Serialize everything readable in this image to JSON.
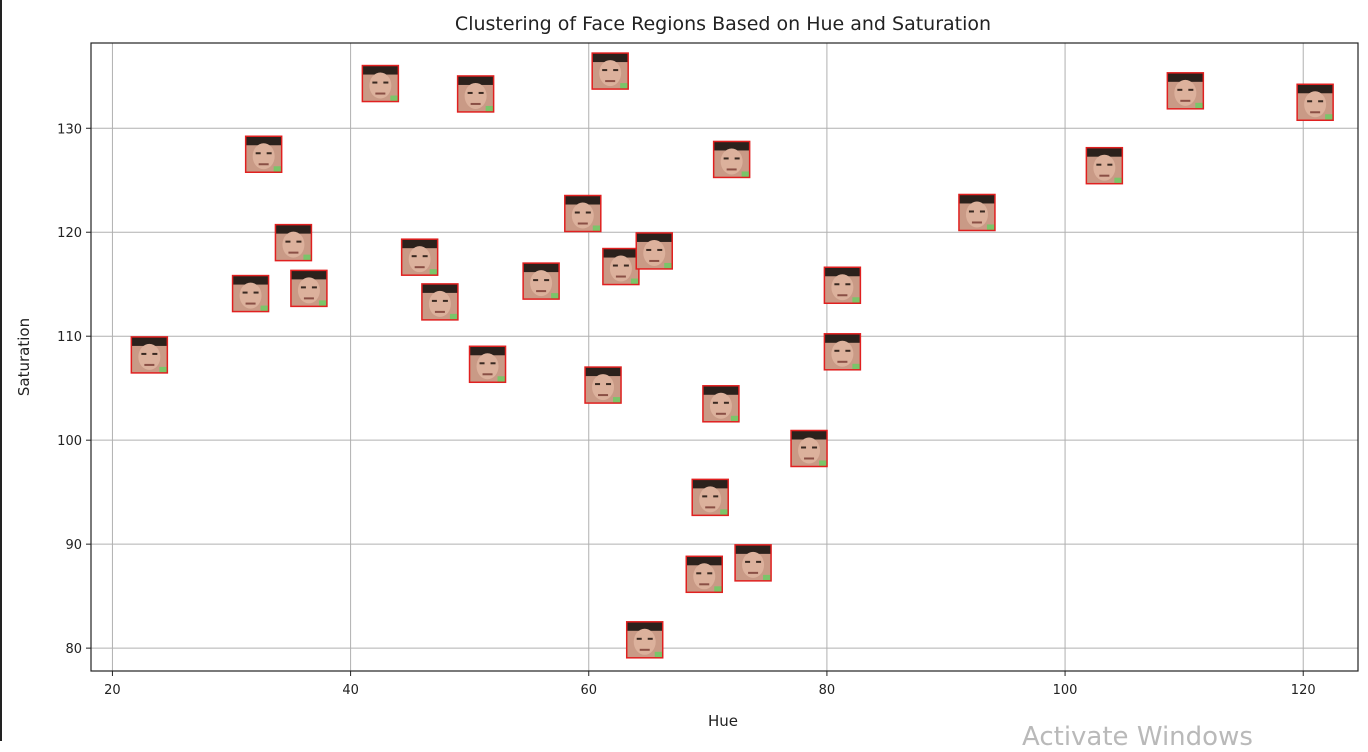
{
  "watermark": "Activate Windows",
  "chart_data": {
    "type": "scatter",
    "title": "Clustering of Face Regions Based on Hue and Saturation",
    "xlabel": "Hue",
    "ylabel": "Saturation",
    "xlim": [
      18.2,
      124.6
    ],
    "ylim": [
      77.8,
      138.2
    ],
    "xticks": [
      20,
      40,
      60,
      80,
      100,
      120
    ],
    "yticks": [
      80,
      90,
      100,
      110,
      120,
      130
    ],
    "grid": true,
    "marker": "face-thumbnail",
    "marker_colors": {
      "border": "#e02020",
      "skin": "#c99a86",
      "hair": "#2b211c",
      "accent": "#5fd35f"
    },
    "points": [
      {
        "x": 23.1,
        "y": 108.2
      },
      {
        "x": 31.6,
        "y": 114.1
      },
      {
        "x": 32.7,
        "y": 127.5
      },
      {
        "x": 35.2,
        "y": 119.0
      },
      {
        "x": 36.5,
        "y": 114.6
      },
      {
        "x": 42.5,
        "y": 134.3
      },
      {
        "x": 45.8,
        "y": 117.6
      },
      {
        "x": 47.5,
        "y": 113.3
      },
      {
        "x": 50.5,
        "y": 133.3
      },
      {
        "x": 51.5,
        "y": 107.3
      },
      {
        "x": 56.0,
        "y": 115.3
      },
      {
        "x": 59.5,
        "y": 121.8
      },
      {
        "x": 61.2,
        "y": 105.3
      },
      {
        "x": 61.8,
        "y": 135.5
      },
      {
        "x": 62.7,
        "y": 116.7
      },
      {
        "x": 64.7,
        "y": 80.8
      },
      {
        "x": 65.5,
        "y": 118.2
      },
      {
        "x": 69.7,
        "y": 87.1
      },
      {
        "x": 70.2,
        "y": 94.5
      },
      {
        "x": 71.1,
        "y": 103.5
      },
      {
        "x": 72.0,
        "y": 127.0
      },
      {
        "x": 73.8,
        "y": 88.2
      },
      {
        "x": 78.5,
        "y": 99.2
      },
      {
        "x": 81.3,
        "y": 114.9
      },
      {
        "x": 81.3,
        "y": 108.5
      },
      {
        "x": 92.6,
        "y": 121.9
      },
      {
        "x": 103.3,
        "y": 126.4
      },
      {
        "x": 110.1,
        "y": 133.6
      },
      {
        "x": 121.0,
        "y": 132.5
      }
    ]
  }
}
